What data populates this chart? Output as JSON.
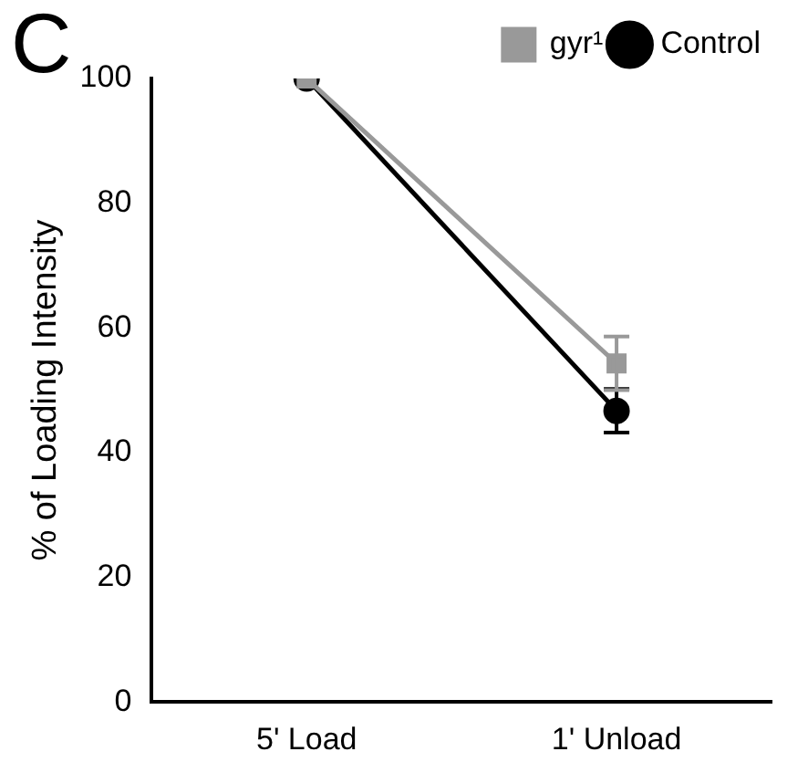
{
  "chart_data": {
    "type": "line",
    "ylabel": "% of Loading Intensity",
    "categories": [
      "5' Load",
      "1' Unload"
    ],
    "series": [
      {
        "name": "Control",
        "color": "#000000",
        "marker": "circle",
        "values": [
          100,
          46.7
        ],
        "errors": [
          null,
          3.5
        ]
      },
      {
        "name": "gyr¹",
        "color": "#999999",
        "marker": "square",
        "values": [
          100,
          54.3
        ],
        "errors": [
          null,
          4.3
        ]
      }
    ],
    "ylim": [
      0,
      100
    ],
    "yticks": [
      0,
      20,
      40,
      60,
      80,
      100
    ],
    "grid": false,
    "legend": "top right",
    "annotations": [
      "C"
    ]
  }
}
